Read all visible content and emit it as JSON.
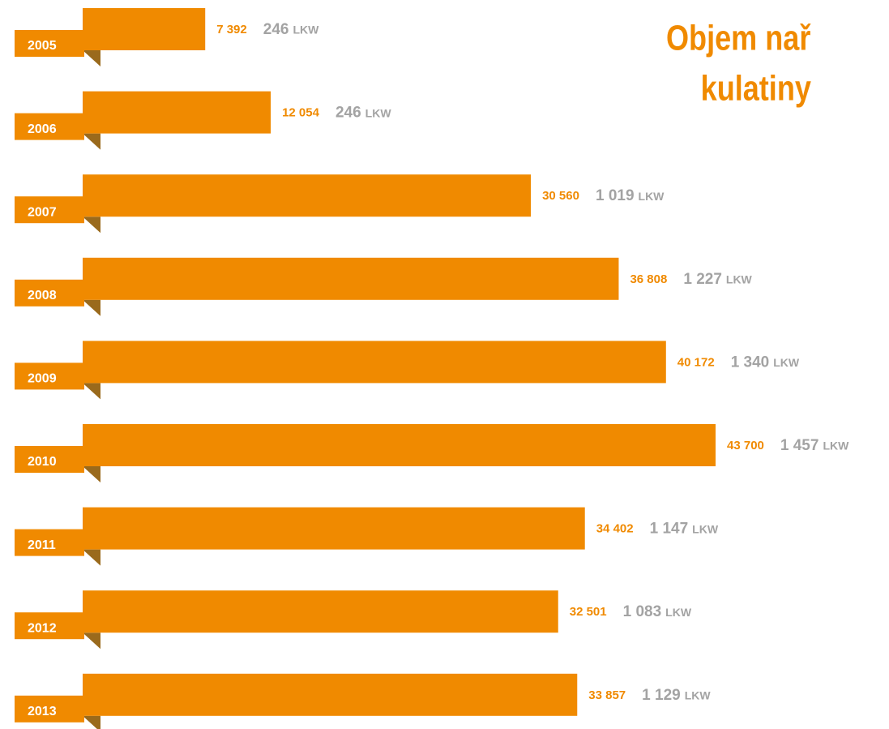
{
  "chart_data": {
    "type": "bar",
    "title": [
      "Objem nař",
      "kulatiny"
    ],
    "categories": [
      "2005",
      "2006",
      "2007",
      "2008",
      "2009",
      "2010",
      "2011",
      "2012",
      "2013"
    ],
    "color": "#f08a00",
    "series": [
      {
        "values": [
          7392,
          12054,
          30560,
          36808,
          40172,
          43700,
          34402,
          32501,
          33857
        ],
        "value_labels": [
          "7 392",
          "12 054",
          "30 560",
          "36 808",
          "40 172",
          "43 700",
          "34 402",
          "32 501",
          "33 857"
        ],
        "color": "#f08a00"
      },
      {
        "values": [
          246,
          246,
          1019,
          1227,
          1340,
          1457,
          1147,
          1083,
          1129
        ],
        "value_labels": [
          "246",
          "246",
          "1 019",
          "1 227",
          "1 340",
          "1 457",
          "1 147",
          "1 083",
          "1 129"
        ],
        "unit": "LKW",
        "color": "#a3a3a3"
      }
    ]
  }
}
